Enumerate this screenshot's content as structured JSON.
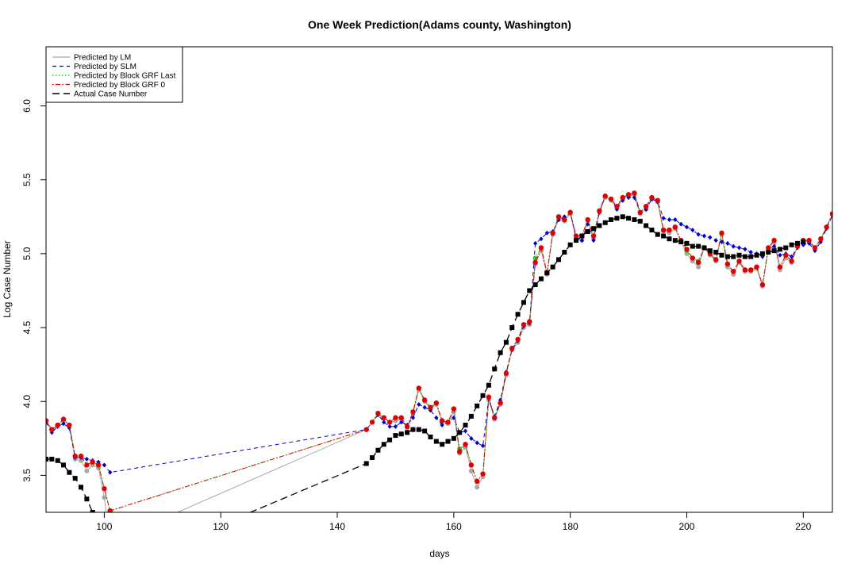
{
  "chart_data": {
    "type": "line",
    "title": "One Week Prediction(Adams county, Washington)",
    "xlabel": "days",
    "ylabel": "Log Case Number",
    "xlim": [
      90,
      225
    ],
    "ylim": [
      3.25,
      6.4
    ],
    "x_ticks": [
      100,
      120,
      140,
      160,
      180,
      200,
      220
    ],
    "y_ticks": [
      3.5,
      4.0,
      4.5,
      5.0,
      5.5,
      6.0
    ],
    "x_tick_labels": [
      "100",
      "120",
      "140",
      "160",
      "180",
      "200",
      "220"
    ],
    "y_tick_labels": [
      "3.5",
      "4.0",
      "4.5",
      "5.0",
      "5.5",
      "6.0"
    ],
    "grid": false,
    "legend_position": "top-left",
    "series": [
      {
        "name": "Predicted by LM",
        "color": "#a8a8a8",
        "line": "solid",
        "marker": "circle",
        "x": [
          90,
          91,
          92,
          93,
          94,
          95,
          96,
          97,
          98,
          99,
          100,
          101,
          145,
          146,
          147,
          148,
          149,
          150,
          151,
          152,
          153,
          154,
          155,
          156,
          157,
          158,
          159,
          160,
          161,
          162,
          163,
          164,
          165,
          166,
          167,
          168,
          169,
          170,
          171,
          172,
          173,
          174,
          175,
          176,
          177,
          178,
          179,
          180,
          181,
          182,
          183,
          184,
          185,
          186,
          187,
          188,
          189,
          190,
          191,
          192,
          193,
          194,
          195,
          196,
          197,
          198,
          199,
          200,
          201,
          202,
          203,
          204,
          205,
          206,
          207,
          208,
          209,
          210,
          211,
          212,
          213,
          214,
          215,
          216,
          217,
          218,
          219,
          220,
          221,
          222,
          223,
          224,
          225
        ],
        "y": [
          3.86,
          3.81,
          3.84,
          3.87,
          3.84,
          3.61,
          3.6,
          3.53,
          3.57,
          3.55,
          3.35,
          3.05,
          3.81,
          3.86,
          3.91,
          3.89,
          3.86,
          3.87,
          3.88,
          3.82,
          3.92,
          4.08,
          4.0,
          3.95,
          3.98,
          3.86,
          3.85,
          3.93,
          3.65,
          3.69,
          3.53,
          3.42,
          3.49,
          4.01,
          3.88,
          3.98,
          4.18,
          4.35,
          4.4,
          4.5,
          4.52,
          4.93,
          5.02,
          4.86,
          5.13,
          5.23,
          5.22,
          5.27,
          5.1,
          5.09,
          5.22,
          5.1,
          5.28,
          5.38,
          5.36,
          5.31,
          5.37,
          5.39,
          5.4,
          5.27,
          5.3,
          5.37,
          5.35,
          5.15,
          5.14,
          5.17,
          5.08,
          5.0,
          4.95,
          4.91,
          5.04,
          4.99,
          4.95,
          5.13,
          4.91,
          4.86,
          4.94,
          4.88,
          4.88,
          4.9,
          4.78,
          5.03,
          5.08,
          4.89,
          4.97,
          4.94,
          5.05,
          5.08,
          5.08,
          5.03,
          5.1,
          5.18,
          5.27
        ]
      },
      {
        "name": "Predicted by SLM",
        "color": "#0000cc",
        "line": "dashed",
        "marker": "diamond",
        "x": [
          90,
          91,
          92,
          93,
          94,
          95,
          96,
          97,
          98,
          99,
          100,
          101,
          145,
          146,
          147,
          148,
          149,
          150,
          151,
          152,
          153,
          154,
          155,
          156,
          157,
          158,
          159,
          160,
          161,
          162,
          163,
          164,
          165,
          166,
          167,
          168,
          169,
          170,
          171,
          172,
          173,
          174,
          175,
          176,
          177,
          178,
          179,
          180,
          181,
          182,
          183,
          184,
          185,
          186,
          187,
          188,
          189,
          190,
          191,
          192,
          193,
          194,
          195,
          196,
          197,
          198,
          199,
          200,
          201,
          202,
          203,
          204,
          205,
          206,
          207,
          208,
          209,
          210,
          211,
          212,
          213,
          214,
          215,
          216,
          217,
          218,
          219,
          220,
          221,
          222,
          223,
          224,
          225
        ],
        "y": [
          3.86,
          3.79,
          3.83,
          3.85,
          3.82,
          3.62,
          3.62,
          3.61,
          3.6,
          3.59,
          3.57,
          3.52,
          3.81,
          3.86,
          3.91,
          3.86,
          3.83,
          3.83,
          3.86,
          3.84,
          3.89,
          3.98,
          3.96,
          3.94,
          3.89,
          3.84,
          3.86,
          3.89,
          3.79,
          3.8,
          3.75,
          3.72,
          3.7,
          4.02,
          3.9,
          4.01,
          4.2,
          4.35,
          4.41,
          4.51,
          4.53,
          5.07,
          5.1,
          5.14,
          5.15,
          5.23,
          5.25,
          5.28,
          5.11,
          5.09,
          5.2,
          5.09,
          5.28,
          5.39,
          5.37,
          5.3,
          5.36,
          5.38,
          5.38,
          5.28,
          5.3,
          5.37,
          5.35,
          5.24,
          5.23,
          5.23,
          5.2,
          5.18,
          5.16,
          5.13,
          5.12,
          5.11,
          5.09,
          5.08,
          5.07,
          5.05,
          5.04,
          5.03,
          5.01,
          5.0,
          4.98,
          5.03,
          5.05,
          4.99,
          5.0,
          4.98,
          5.04,
          5.06,
          5.07,
          5.02,
          5.08,
          5.17,
          5.26
        ]
      },
      {
        "name": "Predicted by Block GRF Last",
        "color": "#22cc22",
        "line": "dotted",
        "marker": "circle",
        "x": [
          90,
          91,
          92,
          93,
          94,
          95,
          96,
          97,
          98,
          99,
          100,
          101,
          145,
          146,
          147,
          148,
          149,
          150,
          151,
          152,
          153,
          154,
          155,
          156,
          157,
          158,
          159,
          160,
          161,
          162,
          163,
          164,
          165,
          166,
          167,
          168,
          169,
          170,
          171,
          172,
          173,
          174,
          175,
          176,
          177,
          178,
          179,
          180,
          181,
          182,
          183,
          184,
          185,
          186,
          187,
          188,
          189,
          190,
          191,
          192,
          193,
          194,
          195,
          196,
          197,
          198,
          199,
          200,
          201,
          202,
          203,
          204,
          205,
          206,
          207,
          208,
          209,
          210,
          211,
          212,
          213,
          214,
          215,
          216,
          217,
          218,
          219,
          220,
          221,
          222,
          223,
          224,
          225
        ],
        "y": [
          3.87,
          3.81,
          3.84,
          3.88,
          3.84,
          3.63,
          3.63,
          3.57,
          3.59,
          3.57,
          3.41,
          3.26,
          3.81,
          3.86,
          3.92,
          3.89,
          3.86,
          3.89,
          3.89,
          3.83,
          3.93,
          4.09,
          4.01,
          3.96,
          3.99,
          3.87,
          3.86,
          3.95,
          3.68,
          3.71,
          3.57,
          3.46,
          3.51,
          4.03,
          3.89,
          3.99,
          4.19,
          4.36,
          4.42,
          4.52,
          4.54,
          4.97,
          5.04,
          4.87,
          5.14,
          5.25,
          5.23,
          5.28,
          5.12,
          5.12,
          5.23,
          5.12,
          5.29,
          5.39,
          5.37,
          5.32,
          5.38,
          5.4,
          5.41,
          5.28,
          5.32,
          5.38,
          5.36,
          5.16,
          5.16,
          5.18,
          5.09,
          5.02,
          4.97,
          4.95,
          5.04,
          5.0,
          4.96,
          5.14,
          4.93,
          4.88,
          4.95,
          4.89,
          4.89,
          4.91,
          4.79,
          5.04,
          5.09,
          4.91,
          4.99,
          4.95,
          5.05,
          5.09,
          5.09,
          5.04,
          5.1,
          5.18,
          5.27
        ]
      },
      {
        "name": "Predicted by Block GRF 0",
        "color": "#e00000",
        "line": "dotdash",
        "marker": "circle",
        "x": [
          90,
          91,
          92,
          93,
          94,
          95,
          96,
          97,
          98,
          99,
          100,
          101,
          145,
          146,
          147,
          148,
          149,
          150,
          151,
          152,
          153,
          154,
          155,
          156,
          157,
          158,
          159,
          160,
          161,
          162,
          163,
          164,
          165,
          166,
          167,
          168,
          169,
          170,
          171,
          172,
          173,
          174,
          175,
          176,
          177,
          178,
          179,
          180,
          181,
          182,
          183,
          184,
          185,
          186,
          187,
          188,
          189,
          190,
          191,
          192,
          193,
          194,
          195,
          196,
          197,
          198,
          199,
          200,
          201,
          202,
          203,
          204,
          205,
          206,
          207,
          208,
          209,
          210,
          211,
          212,
          213,
          214,
          215,
          216,
          217,
          218,
          219,
          220,
          221,
          222,
          223,
          224,
          225
        ],
        "y": [
          3.87,
          3.81,
          3.84,
          3.88,
          3.84,
          3.63,
          3.63,
          3.57,
          3.59,
          3.57,
          3.41,
          3.26,
          3.81,
          3.86,
          3.92,
          3.89,
          3.86,
          3.89,
          3.89,
          3.83,
          3.93,
          4.09,
          4.01,
          3.96,
          3.99,
          3.87,
          3.86,
          3.95,
          3.66,
          3.71,
          3.57,
          3.46,
          3.51,
          4.03,
          3.89,
          3.99,
          4.19,
          4.36,
          4.42,
          4.52,
          4.54,
          4.94,
          5.04,
          4.87,
          5.14,
          5.25,
          5.23,
          5.28,
          5.12,
          5.12,
          5.23,
          5.12,
          5.29,
          5.39,
          5.37,
          5.32,
          5.38,
          5.4,
          5.41,
          5.28,
          5.32,
          5.38,
          5.36,
          5.16,
          5.16,
          5.18,
          5.09,
          5.03,
          4.97,
          4.94,
          5.04,
          5.0,
          4.96,
          5.14,
          4.93,
          4.88,
          4.95,
          4.89,
          4.89,
          4.91,
          4.79,
          5.04,
          5.09,
          4.91,
          4.99,
          4.95,
          5.05,
          5.09,
          5.09,
          5.04,
          5.1,
          5.18,
          5.27
        ]
      },
      {
        "name": "Actual Case Number",
        "color": "#000000",
        "line": "longdash",
        "marker": "square",
        "x": [
          90,
          91,
          92,
          93,
          94,
          95,
          96,
          97,
          98,
          99,
          100,
          101,
          145,
          146,
          147,
          148,
          149,
          150,
          151,
          152,
          153,
          154,
          155,
          156,
          157,
          158,
          159,
          160,
          161,
          162,
          163,
          164,
          165,
          166,
          167,
          168,
          169,
          170,
          171,
          172,
          173,
          174,
          175,
          176,
          177,
          178,
          179,
          180,
          181,
          182,
          183,
          184,
          185,
          186,
          187,
          188,
          189,
          190,
          191,
          192,
          193,
          194,
          195,
          196,
          197,
          198,
          199,
          200,
          201,
          202,
          203,
          204,
          205,
          206,
          207,
          208,
          209,
          210,
          211,
          212,
          213,
          214,
          215,
          216,
          217,
          218,
          219,
          220
        ],
        "y": [
          3.61,
          3.61,
          3.6,
          3.57,
          3.52,
          3.48,
          3.42,
          3.34,
          3.25,
          3.05,
          2.95,
          2.85,
          3.58,
          3.62,
          3.67,
          3.71,
          3.74,
          3.77,
          3.78,
          3.79,
          3.81,
          3.81,
          3.8,
          3.76,
          3.73,
          3.71,
          3.73,
          3.75,
          3.79,
          3.84,
          3.9,
          3.97,
          4.04,
          4.11,
          4.22,
          4.33,
          4.4,
          4.5,
          4.59,
          4.67,
          4.75,
          4.79,
          4.83,
          4.87,
          4.91,
          4.96,
          5.01,
          5.06,
          5.09,
          5.12,
          5.15,
          5.17,
          5.19,
          5.21,
          5.23,
          5.24,
          5.25,
          5.24,
          5.23,
          5.22,
          5.19,
          5.16,
          5.13,
          5.12,
          5.1,
          5.09,
          5.08,
          5.07,
          5.05,
          5.05,
          5.04,
          5.02,
          5.01,
          4.99,
          4.98,
          4.98,
          4.99,
          4.98,
          4.98,
          4.99,
          5.0,
          5.01,
          5.02,
          5.03,
          5.04,
          5.06,
          5.07,
          5.08
        ]
      }
    ]
  }
}
